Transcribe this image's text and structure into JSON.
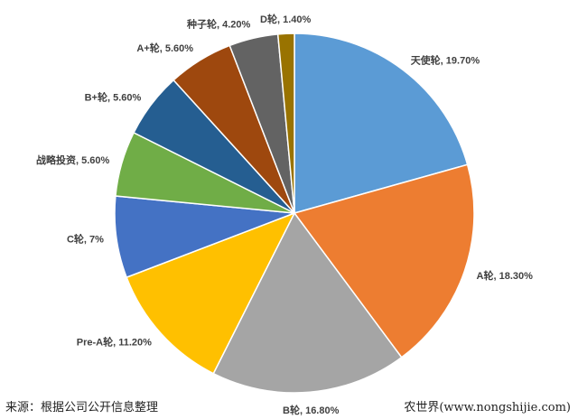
{
  "chart_data": {
    "type": "pie",
    "start": "top",
    "direction": "clockwise",
    "slices": [
      {
        "label": "天使轮",
        "value": 19.7,
        "text": "天使轮, 19.70%",
        "color": "#5b9bd5"
      },
      {
        "label": "A轮",
        "value": 18.3,
        "text": "A轮, 18.30%",
        "color": "#ed7d31"
      },
      {
        "label": "B轮",
        "value": 16.8,
        "text": "B轮, 16.80%",
        "color": "#a5a5a5"
      },
      {
        "label": "Pre-A轮",
        "value": 11.2,
        "text": "Pre-A轮, 11.20%",
        "color": "#ffc000"
      },
      {
        "label": "C轮",
        "value": 7,
        "text": "C轮, 7%",
        "color": "#4472c4"
      },
      {
        "label": "战略投资",
        "value": 5.6,
        "text": "战略投资, 5.60%",
        "color": "#70ad47"
      },
      {
        "label": "B+轮",
        "value": 5.6,
        "text": "B+轮, 5.60%",
        "color": "#255e91"
      },
      {
        "label": "A+轮",
        "value": 5.6,
        "text": "A+轮, 5.60%",
        "color": "#9e480e"
      },
      {
        "label": "种子轮",
        "value": 4.2,
        "text": "种子轮, 4.20%",
        "color": "#636363"
      },
      {
        "label": "D轮",
        "value": 1.4,
        "text": "D轮, 1.40%",
        "color": "#997300"
      }
    ]
  },
  "footer": {
    "source": "来源：根据公司公开信息整理",
    "credit": "农世界(www.nongshijie.com)"
  }
}
